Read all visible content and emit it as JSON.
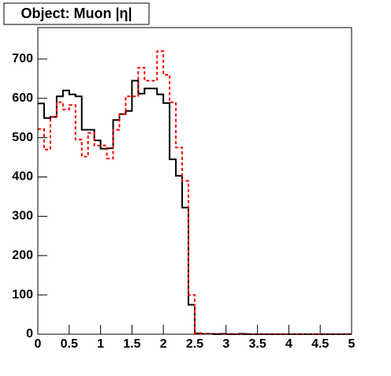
{
  "chart_data": {
    "type": "histogram",
    "title": "Object: Muon |η|",
    "bins": [
      0,
      0.1,
      0.2,
      0.3,
      0.4,
      0.5,
      0.6,
      0.7,
      0.8,
      0.9,
      1,
      1.1,
      1.2,
      1.3,
      1.4,
      1.5,
      1.6,
      1.7,
      1.8,
      1.9,
      2,
      2.1,
      2.2,
      2.3,
      2.4,
      2.5,
      2.6,
      2.7,
      2.8,
      2.9,
      3,
      3.1,
      3.2,
      3.3,
      3.4,
      3.5,
      3.6,
      3.7,
      3.8,
      3.9,
      4,
      4.1,
      4.2,
      4.3,
      4.4,
      4.5,
      4.6,
      4.7,
      4.8,
      4.9,
      5
    ],
    "series": [
      {
        "color": "#000000",
        "dash": false,
        "values": [
          587,
          550,
          553,
          605,
          620,
          610,
          605,
          520,
          520,
          493,
          472,
          473,
          545,
          560,
          568,
          645,
          612,
          625,
          625,
          610,
          588,
          445,
          403,
          322,
          75,
          2,
          1,
          1,
          0,
          1,
          0,
          0,
          1,
          0,
          0,
          0,
          0,
          0,
          0,
          0,
          0,
          0,
          0,
          0,
          0,
          0,
          0,
          0,
          0,
          0
        ]
      },
      {
        "color": "#ff0000",
        "dash": true,
        "values": [
          522,
          470,
          553,
          590,
          572,
          583,
          495,
          452,
          512,
          480,
          480,
          447,
          520,
          560,
          605,
          605,
          678,
          645,
          645,
          720,
          660,
          590,
          475,
          390,
          100,
          3,
          1,
          1,
          1,
          0,
          1,
          0,
          0,
          1,
          0,
          0,
          0,
          0,
          0,
          0,
          0,
          0,
          0,
          0,
          0,
          0,
          0,
          0,
          0,
          0
        ]
      }
    ],
    "xlim": [
      0,
      5
    ],
    "xticks": [
      0,
      0.5,
      1,
      1.5,
      2,
      2.5,
      3,
      3.5,
      4,
      4.5,
      5
    ],
    "ylim": [
      0,
      780
    ],
    "yticks": [
      0,
      100,
      200,
      300,
      400,
      500,
      600,
      700
    ]
  }
}
